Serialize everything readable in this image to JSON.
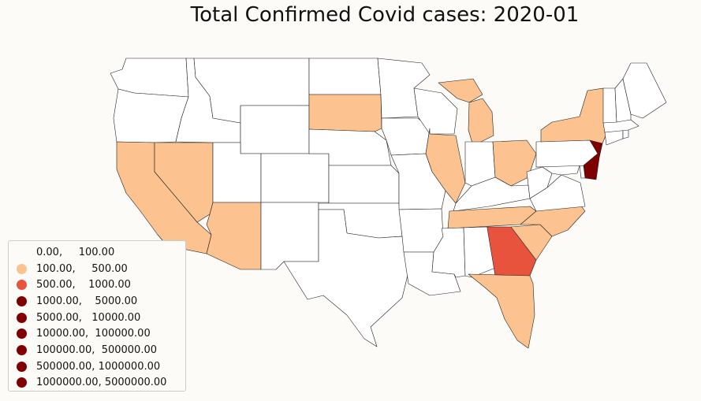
{
  "title": "Total Confirmed Covid cases: 2020-01",
  "colors": {
    "bin_0": "#fcfbf8",
    "bin_1": "#fcc28f",
    "bin_2": "#e8533d",
    "bin_3": "#7f0000",
    "no_data": "#ffffff",
    "border": "#222222"
  },
  "legend": {
    "items": [
      {
        "label": "0.00,     100.00",
        "bin": "bin_0"
      },
      {
        "label": "100.00,     500.00",
        "bin": "bin_1"
      },
      {
        "label": "500.00,    1000.00",
        "bin": "bin_2"
      },
      {
        "label": "1000.00,    5000.00",
        "bin": "bin_3"
      },
      {
        "label": "5000.00,   10000.00",
        "bin": "bin_3"
      },
      {
        "label": "10000.00,  100000.00",
        "bin": "bin_3"
      },
      {
        "label": "100000.00,  500000.00",
        "bin": "bin_3"
      },
      {
        "label": "500000.00, 1000000.00",
        "bin": "bin_3"
      },
      {
        "label": "1000000.00, 5000000.00",
        "bin": "bin_3"
      }
    ]
  },
  "states": [
    {
      "name": "Washington",
      "bin": "none"
    },
    {
      "name": "Oregon",
      "bin": "none"
    },
    {
      "name": "California",
      "bin": "bin_1"
    },
    {
      "name": "Nevada",
      "bin": "bin_1"
    },
    {
      "name": "Idaho",
      "bin": "none"
    },
    {
      "name": "Montana",
      "bin": "none"
    },
    {
      "name": "Wyoming",
      "bin": "none"
    },
    {
      "name": "Utah",
      "bin": "none"
    },
    {
      "name": "Arizona",
      "bin": "bin_1"
    },
    {
      "name": "Colorado",
      "bin": "none"
    },
    {
      "name": "New Mexico",
      "bin": "none"
    },
    {
      "name": "North Dakota",
      "bin": "none"
    },
    {
      "name": "South Dakota",
      "bin": "bin_1"
    },
    {
      "name": "Nebraska",
      "bin": "none"
    },
    {
      "name": "Kansas",
      "bin": "none"
    },
    {
      "name": "Oklahoma",
      "bin": "none"
    },
    {
      "name": "Texas",
      "bin": "none"
    },
    {
      "name": "Minnesota",
      "bin": "none"
    },
    {
      "name": "Iowa",
      "bin": "none"
    },
    {
      "name": "Missouri",
      "bin": "none"
    },
    {
      "name": "Arkansas",
      "bin": "none"
    },
    {
      "name": "Louisiana",
      "bin": "none"
    },
    {
      "name": "Wisconsin",
      "bin": "none"
    },
    {
      "name": "Illinois",
      "bin": "bin_1"
    },
    {
      "name": "Michigan",
      "bin": "bin_1"
    },
    {
      "name": "Indiana",
      "bin": "none"
    },
    {
      "name": "Ohio",
      "bin": "bin_1"
    },
    {
      "name": "Kentucky",
      "bin": "none"
    },
    {
      "name": "Tennessee",
      "bin": "bin_1"
    },
    {
      "name": "Mississippi",
      "bin": "none"
    },
    {
      "name": "Alabama",
      "bin": "none"
    },
    {
      "name": "Georgia",
      "bin": "bin_2"
    },
    {
      "name": "Florida",
      "bin": "bin_1"
    },
    {
      "name": "South Carolina",
      "bin": "bin_1"
    },
    {
      "name": "North Carolina",
      "bin": "bin_1"
    },
    {
      "name": "Virginia",
      "bin": "none"
    },
    {
      "name": "West Virginia",
      "bin": "none"
    },
    {
      "name": "Maryland",
      "bin": "none"
    },
    {
      "name": "Delaware",
      "bin": "none"
    },
    {
      "name": "Pennsylvania",
      "bin": "none"
    },
    {
      "name": "New Jersey",
      "bin": "bin_3"
    },
    {
      "name": "New York",
      "bin": "bin_1"
    },
    {
      "name": "Connecticut",
      "bin": "none"
    },
    {
      "name": "Rhode Island",
      "bin": "none"
    },
    {
      "name": "Massachusetts",
      "bin": "none"
    },
    {
      "name": "Vermont",
      "bin": "none"
    },
    {
      "name": "New Hampshire",
      "bin": "none"
    },
    {
      "name": "Maine",
      "bin": "none"
    }
  ]
}
